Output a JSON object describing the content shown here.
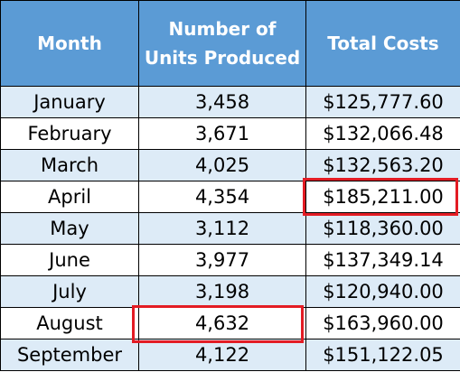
{
  "table": {
    "headers": {
      "month": "Month",
      "units_line1": "Number of",
      "units_line2": "Units Produced",
      "costs": "Total Costs"
    },
    "rows": [
      {
        "month": "January",
        "units": "3,458",
        "costs": "$125,777.60"
      },
      {
        "month": "February",
        "units": "3,671",
        "costs": "$132,066.48"
      },
      {
        "month": "March",
        "units": "4,025",
        "costs": "$132,563.20"
      },
      {
        "month": "April",
        "units": "4,354",
        "costs": "$185,211.00"
      },
      {
        "month": "May",
        "units": "3,112",
        "costs": "$118,360.00"
      },
      {
        "month": "June",
        "units": "3,977",
        "costs": "$137,349.14"
      },
      {
        "month": "July",
        "units": "3,198",
        "costs": "$120,940.00"
      },
      {
        "month": "August",
        "units": "4,632",
        "costs": "$163,960.00"
      },
      {
        "month": "September",
        "units": "4,122",
        "costs": "$151,122.05"
      }
    ],
    "highlighted_cells": [
      {
        "row": "April",
        "column": "Total Costs"
      },
      {
        "row": "August",
        "column": "Number of Units Produced"
      }
    ]
  },
  "colors": {
    "header_bg": "#5b9bd5",
    "header_text": "#ffffff",
    "band_row": "#ddebf7",
    "plain_row": "#ffffff",
    "highlight_border": "#e31c24"
  }
}
